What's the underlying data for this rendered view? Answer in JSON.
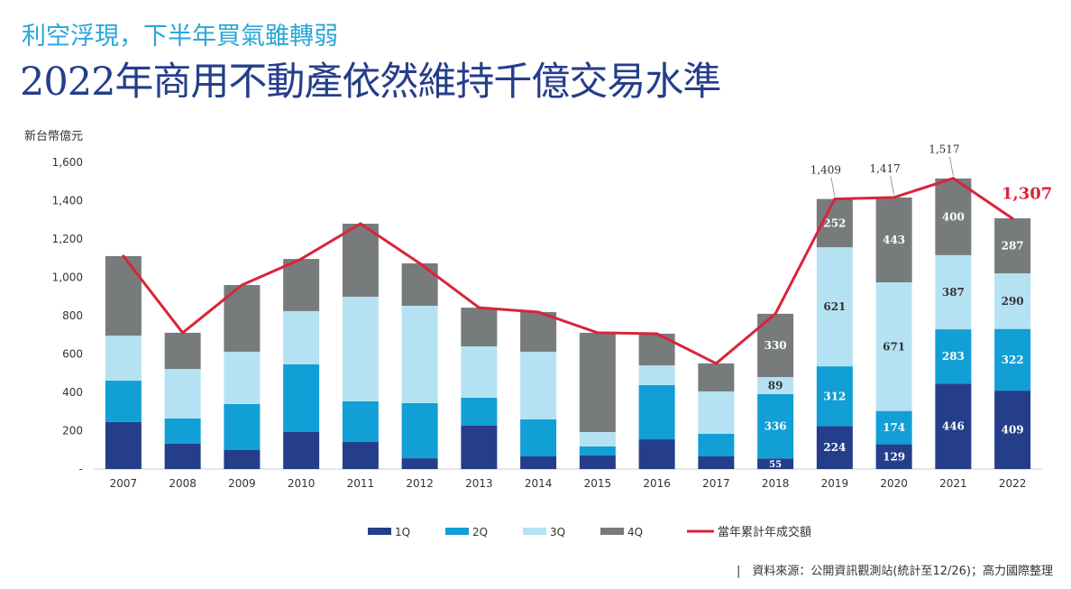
{
  "subtitle": "利空浮現，下半年買氣雖轉弱",
  "title": "2022年商用不動產依然維持千億交易水準",
  "source": "|　資料來源：公開資訊觀測站(統計至12/26)；高力國際整理",
  "chart_data": {
    "type": "bar",
    "stacked": true,
    "ylabel": "新台幣億元",
    "ylim": [
      0,
      1600
    ],
    "yticks": [
      0,
      200,
      400,
      600,
      800,
      1000,
      1200,
      1400,
      1600
    ],
    "ytick_labels": [
      "-",
      "200",
      "400",
      "600",
      "800",
      "1,000",
      "1,200",
      "1,400",
      "1,600"
    ],
    "grid": false,
    "legend_position": "bottom",
    "categories": [
      "2007",
      "2008",
      "2009",
      "2010",
      "2011",
      "2012",
      "2013",
      "2014",
      "2015",
      "2016",
      "2017",
      "2018",
      "2019",
      "2020",
      "2021",
      "2022"
    ],
    "series": [
      {
        "name": "1Q",
        "color": "#253e8a",
        "values": [
          245,
          132,
          99,
          193,
          141,
          56,
          226,
          66,
          71,
          155,
          66,
          55,
          224,
          129,
          446,
          409
        ]
      },
      {
        "name": "2Q",
        "color": "#119fd6",
        "values": [
          216,
          132,
          240,
          353,
          212,
          288,
          146,
          193,
          47,
          283,
          118,
          336,
          312,
          174,
          283,
          322
        ]
      },
      {
        "name": "3Q",
        "color": "#b5e2f3",
        "values": [
          235,
          258,
          273,
          278,
          546,
          508,
          268,
          353,
          75,
          103,
          221,
          89,
          621,
          671,
          387,
          290
        ]
      },
      {
        "name": "4Q",
        "color": "#777b7b",
        "values": [
          415,
          189,
          348,
          272,
          381,
          221,
          202,
          207,
          518,
          165,
          146,
          330,
          252,
          443,
          400,
          287
        ]
      }
    ],
    "line": {
      "name": "當年累計年成交額",
      "color": "#d9243a",
      "values": [
        1111,
        711,
        960,
        1096,
        1280,
        1073,
        842,
        819,
        711,
        706,
        551,
        810,
        1409,
        1417,
        1517,
        1307
      ]
    },
    "data_labels_from": "2018",
    "total_labels": [
      {
        "category": "2019",
        "label": "1,409"
      },
      {
        "category": "2020",
        "label": "1,417"
      },
      {
        "category": "2021",
        "label": "1,517"
      },
      {
        "category": "2022",
        "label": "1,307",
        "highlight": true
      }
    ]
  }
}
